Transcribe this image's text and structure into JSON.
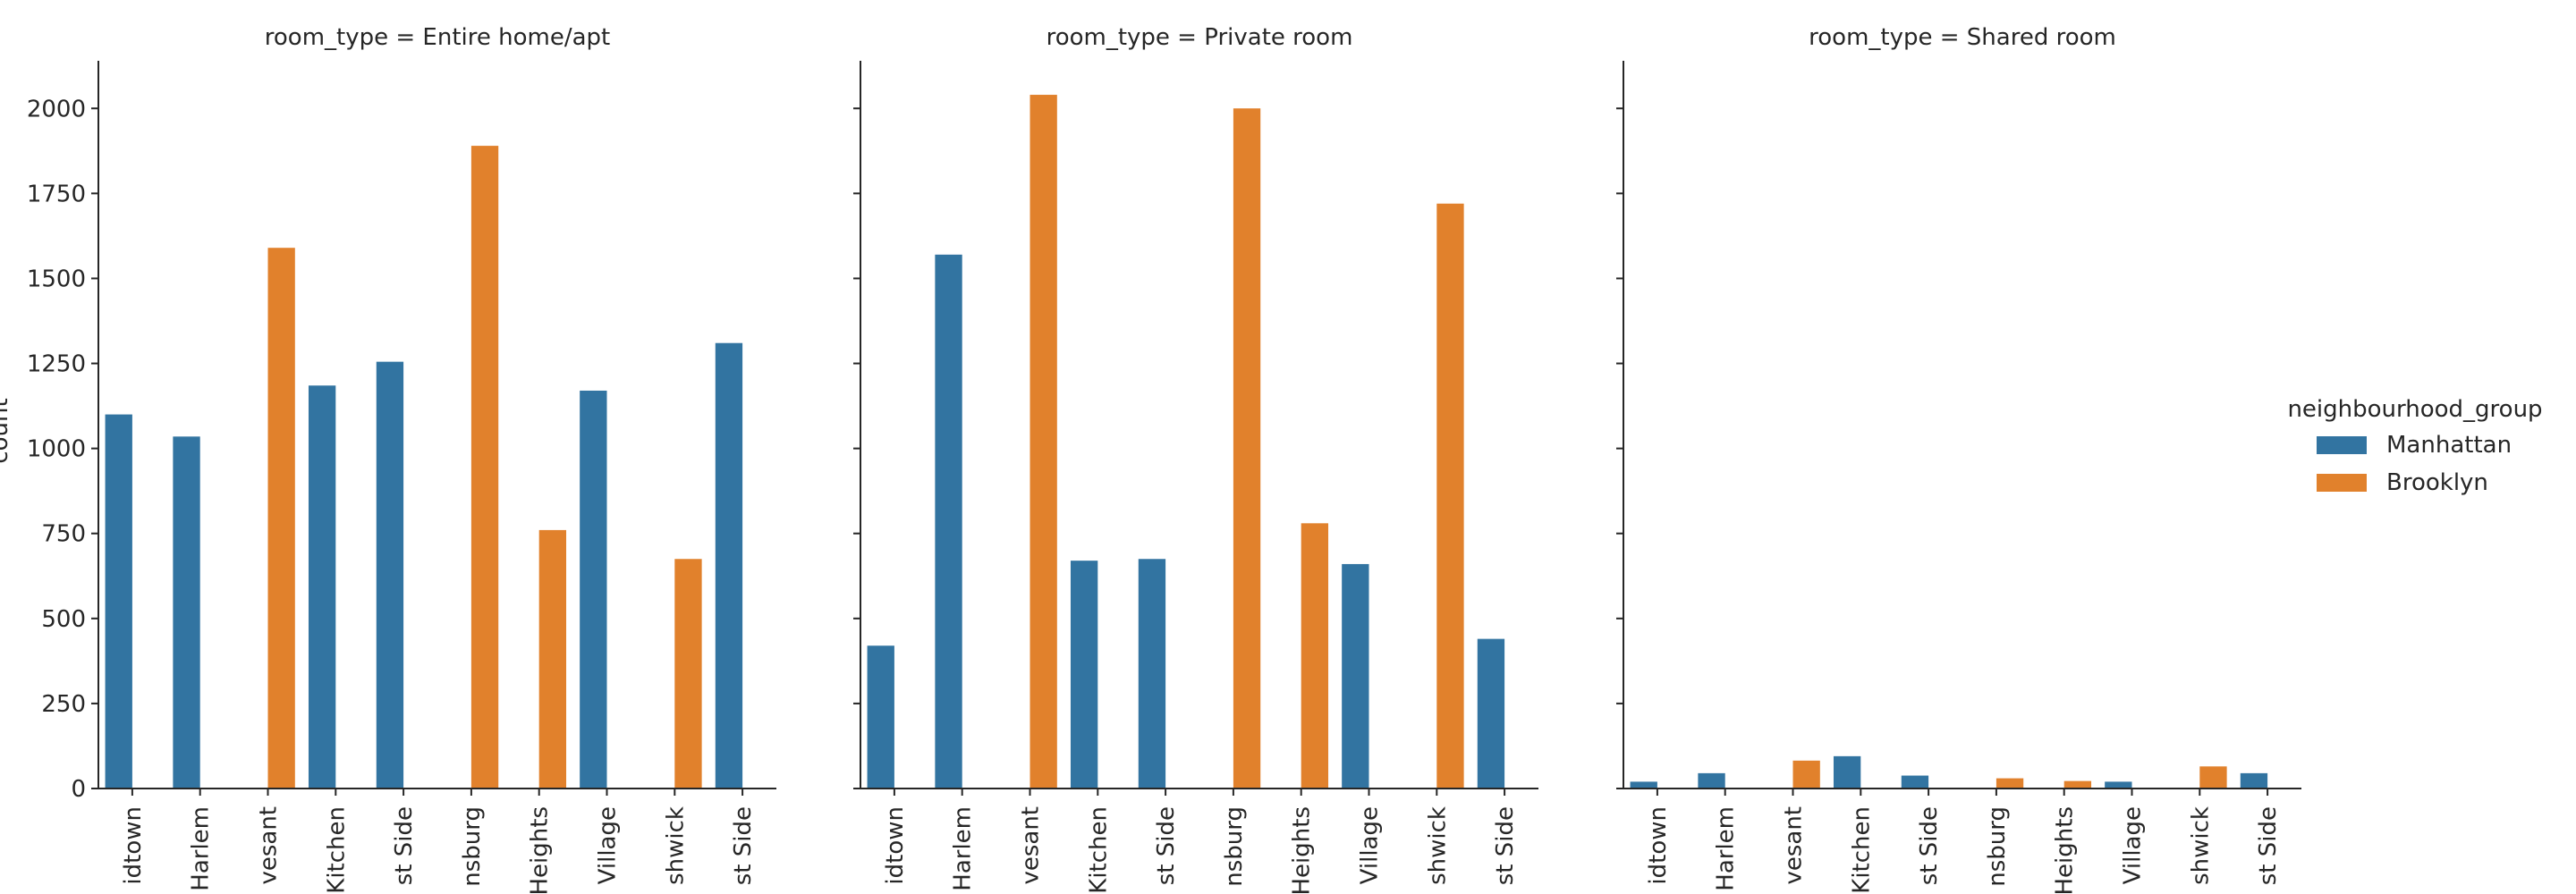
{
  "chart_data": {
    "type": "bar",
    "ylabel": "count",
    "ylim": [
      0,
      2140
    ],
    "yticks": [
      0,
      250,
      500,
      750,
      1000,
      1250,
      1500,
      1750,
      2000
    ],
    "category_labels_visible": [
      "idtown",
      "Harlem",
      "vesant",
      "Kitchen",
      "st Side",
      "nsburg",
      "Heights",
      "Village",
      "shwick",
      "st Side"
    ],
    "legend": {
      "title": "neighbourhood_group",
      "placement": "right",
      "entries": [
        {
          "name": "Manhattan",
          "color": "#3274a1"
        },
        {
          "name": "Brooklyn",
          "color": "#e1812c"
        }
      ]
    },
    "panels": [
      {
        "title": "room_type = Entire home/apt",
        "series": [
          {
            "name": "Manhattan",
            "values": [
              1100,
              1035,
              0,
              1185,
              1255,
              0,
              0,
              1170,
              0,
              1310
            ]
          },
          {
            "name": "Brooklyn",
            "values": [
              0,
              0,
              1590,
              0,
              0,
              1890,
              760,
              0,
              675,
              0
            ]
          }
        ]
      },
      {
        "title": "room_type = Private room",
        "series": [
          {
            "name": "Manhattan",
            "values": [
              420,
              1570,
              0,
              670,
              675,
              0,
              0,
              660,
              0,
              440
            ]
          },
          {
            "name": "Brooklyn",
            "values": [
              0,
              0,
              2040,
              0,
              0,
              2000,
              780,
              0,
              1720,
              0
            ]
          }
        ]
      },
      {
        "title": "room_type = Shared room",
        "series": [
          {
            "name": "Manhattan",
            "values": [
              20,
              45,
              0,
              95,
              38,
              0,
              0,
              20,
              0,
              45
            ]
          },
          {
            "name": "Brooklyn",
            "values": [
              0,
              0,
              82,
              0,
              0,
              30,
              22,
              0,
              65,
              0
            ]
          }
        ]
      }
    ]
  }
}
